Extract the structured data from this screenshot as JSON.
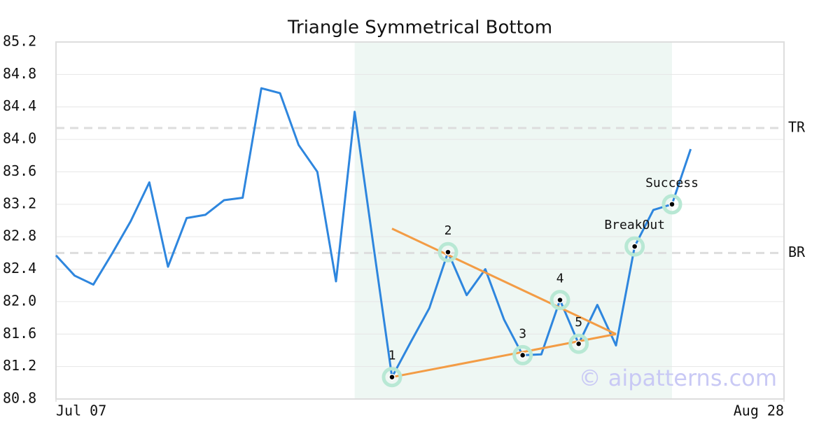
{
  "chart_data": {
    "type": "line",
    "title": "Triangle Symmetrical Bottom",
    "x": [
      0,
      1,
      2,
      3,
      4,
      5,
      6,
      7,
      8,
      9,
      10,
      11,
      12,
      13,
      14,
      15,
      16,
      17,
      18,
      19,
      20,
      21,
      22,
      23,
      24,
      25,
      26,
      27,
      28,
      29,
      30,
      31,
      32,
      33,
      34
    ],
    "xlim": [
      0,
      39
    ],
    "xticks": [
      {
        "value": 0,
        "label": "Jul 07"
      },
      {
        "value": 39,
        "label": "Aug 28"
      }
    ],
    "ylim": [
      80.8,
      85.2
    ],
    "yticks": [
      {
        "value": 80.8,
        "label": "80.8"
      },
      {
        "value": 81.2,
        "label": "81.2"
      },
      {
        "value": 81.6,
        "label": "81.6"
      },
      {
        "value": 82.0,
        "label": "82.0"
      },
      {
        "value": 82.4,
        "label": "82.4"
      },
      {
        "value": 82.8,
        "label": "82.8"
      },
      {
        "value": 83.2,
        "label": "83.2"
      },
      {
        "value": 83.6,
        "label": "83.6"
      },
      {
        "value": 84.0,
        "label": "84.0"
      },
      {
        "value": 84.4,
        "label": "84.4"
      },
      {
        "value": 84.8,
        "label": "84.8"
      },
      {
        "value": 85.2,
        "label": "85.2"
      }
    ],
    "grid": true,
    "series": [
      {
        "color": "#2e86de",
        "values": [
          82.57,
          82.32,
          82.21,
          82.59,
          82.99,
          83.47,
          82.43,
          83.03,
          83.07,
          83.25,
          83.28,
          84.63,
          84.57,
          83.93,
          83.6,
          82.25,
          84.34,
          82.7,
          81.07,
          81.5,
          81.92,
          82.61,
          82.08,
          82.4,
          81.78,
          81.34,
          81.35,
          82.02,
          81.48,
          81.96,
          81.46,
          82.68,
          83.13,
          83.2,
          83.88
        ]
      }
    ],
    "highlight_range": {
      "x": [
        16,
        33
      ],
      "color": "#eef7f3"
    },
    "reference_lines": [
      {
        "label": "TR",
        "value": 84.14
      },
      {
        "label": "BR",
        "value": 82.6
      }
    ],
    "trend_lines": [
      {
        "color": "#f39c45",
        "x": [
          18,
          30
        ],
        "y": [
          82.9,
          81.6
        ]
      },
      {
        "color": "#f39c45",
        "x": [
          18,
          30
        ],
        "y": [
          81.07,
          81.6
        ]
      }
    ],
    "pattern_points": [
      {
        "label": "1",
        "x": 18,
        "y": 81.07
      },
      {
        "label": "2",
        "x": 21,
        "y": 82.61
      },
      {
        "label": "3",
        "x": 25,
        "y": 81.34
      },
      {
        "label": "4",
        "x": 27,
        "y": 82.02
      },
      {
        "label": "5",
        "x": 28,
        "y": 81.48
      },
      {
        "label": "BreakOut",
        "x": 31,
        "y": 82.68
      },
      {
        "label": "Success",
        "x": 33,
        "y": 83.2
      }
    ],
    "watermark": "© aipatterns.com"
  }
}
